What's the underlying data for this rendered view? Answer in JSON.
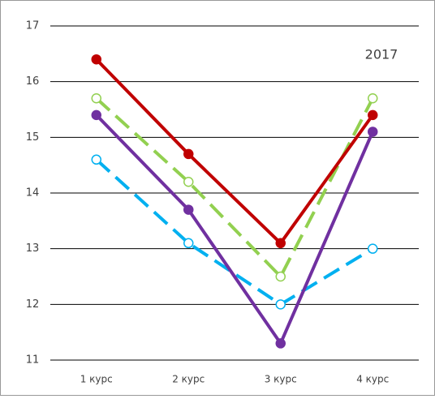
{
  "chart_data": {
    "type": "line",
    "annotation": "2017",
    "categories": [
      "1 курс",
      "2 курс",
      "3 курс",
      "4 курс"
    ],
    "series": [
      {
        "color": "#00b0f0",
        "dashed": true,
        "marker": "open",
        "values": [
          14.6,
          13.1,
          12.0,
          13.0
        ]
      },
      {
        "color": "#7030a0",
        "dashed": false,
        "marker": "filled",
        "values": [
          15.4,
          13.7,
          11.3,
          15.1
        ]
      },
      {
        "color": "#92d050",
        "dashed": true,
        "marker": "open",
        "values": [
          15.7,
          14.2,
          12.5,
          15.7
        ]
      },
      {
        "color": "#c00000",
        "dashed": false,
        "marker": "filled",
        "values": [
          16.4,
          14.7,
          13.1,
          15.4
        ]
      }
    ],
    "ylim": [
      11,
      17
    ],
    "yticks": [
      11,
      12,
      13,
      14,
      15,
      16,
      17
    ],
    "grid": true
  }
}
